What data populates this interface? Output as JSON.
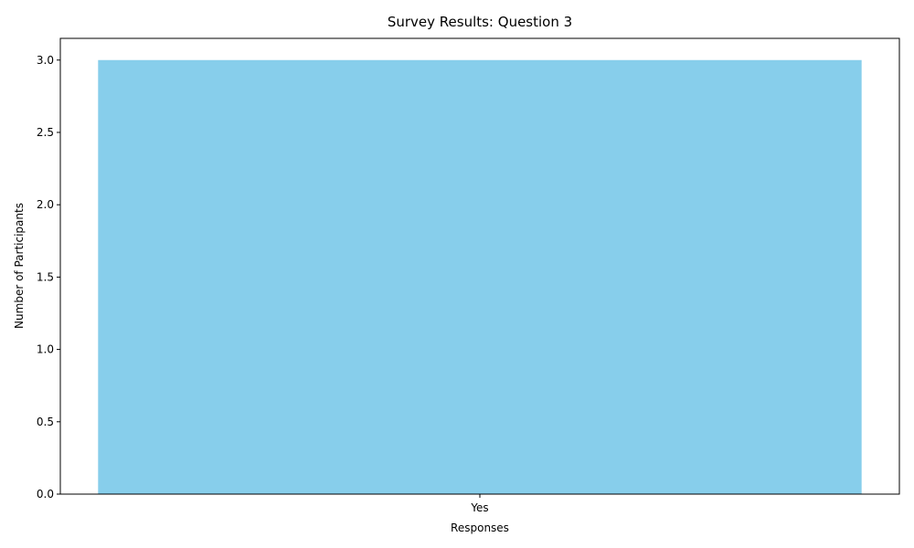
{
  "chart_data": {
    "type": "bar",
    "title": "Survey Results: Question 3",
    "xlabel": "Responses",
    "ylabel": "Number of Participants",
    "categories": [
      "Yes"
    ],
    "values": [
      3
    ],
    "ylim": [
      0,
      3.15
    ],
    "yticks": [
      0.0,
      0.5,
      1.0,
      1.5,
      2.0,
      2.5,
      3.0
    ],
    "ytick_labels": [
      "0.0",
      "0.5",
      "1.0",
      "1.5",
      "2.0",
      "2.5",
      "3.0"
    ],
    "bar_color": "#87CEEB",
    "grid": false,
    "legend": "none"
  }
}
